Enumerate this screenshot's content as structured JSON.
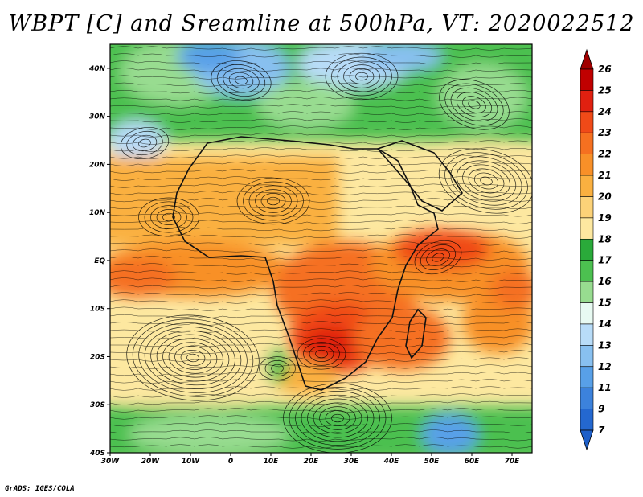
{
  "title": "WBPT [C] and Sreamline at 500hPa, VT: 2020022512",
  "credit": "GrADS: IGES/COLA",
  "map": {
    "variable": "Wet-bulb potential temperature",
    "units": "C",
    "level": "500hPa",
    "valid_time": "2020022512",
    "lon_range": [
      -30,
      75
    ],
    "lat_range": [
      -40,
      45
    ],
    "lat_labels": [
      "40N",
      "30N",
      "20N",
      "10N",
      "EQ",
      "10S",
      "20S",
      "30S",
      "40S"
    ],
    "lat_values": [
      40,
      30,
      20,
      10,
      0,
      -10,
      -20,
      -30,
      -40
    ],
    "lon_labels": [
      "30W",
      "20W",
      "10W",
      "0",
      "10E",
      "20E",
      "30E",
      "40E",
      "50E",
      "60E",
      "70E"
    ],
    "lon_values": [
      -30,
      -20,
      -10,
      0,
      10,
      20,
      30,
      40,
      50,
      60,
      70
    ]
  },
  "colorbar": {
    "labels": [
      "26",
      "25",
      "24",
      "23",
      "22",
      "21",
      "20",
      "19",
      "18",
      "17",
      "16",
      "15",
      "14",
      "13",
      "12",
      "11",
      "9",
      "7"
    ],
    "colors": [
      "#c00000",
      "#e02010",
      "#f04a18",
      "#f57020",
      "#f89028",
      "#fab040",
      "#fcd278",
      "#fde8a0",
      "#2aaa3a",
      "#4cc050",
      "#98dc90",
      "#e8faf2",
      "#b8dcf8",
      "#88c0f0",
      "#58a0e8",
      "#3c82dc",
      "#2468d0"
    ],
    "top_arrow_color": "#a00000",
    "bottom_arrow_color": "#1e5fc8"
  }
}
